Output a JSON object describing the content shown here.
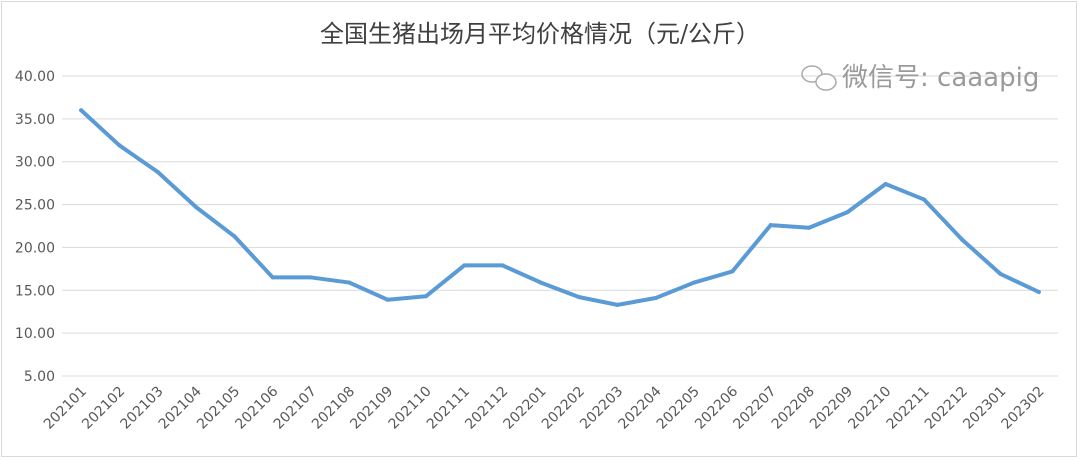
{
  "chart_data": {
    "type": "line",
    "title": "全国生猪出场月平均价格情况（元/公斤）",
    "watermark": "微信号: caaapig",
    "xlabel": "",
    "ylabel": "",
    "ylim": [
      5,
      40
    ],
    "yticks": [
      "5.00",
      "10.00",
      "15.00",
      "20.00",
      "25.00",
      "30.00",
      "35.00",
      "40.00"
    ],
    "grid": true,
    "categories": [
      "202101",
      "202102",
      "202103",
      "202104",
      "202105",
      "202106",
      "202107",
      "202108",
      "202109",
      "202110",
      "202111",
      "202112",
      "202201",
      "202202",
      "202203",
      "202204",
      "202205",
      "202206",
      "202207",
      "202208",
      "202209",
      "202210",
      "202211",
      "202212",
      "202301",
      "202302"
    ],
    "series": [
      {
        "name": "全国生猪出场月平均价格",
        "color": "#5b9bd5",
        "values": [
          36.0,
          31.9,
          28.8,
          24.7,
          21.3,
          16.5,
          16.5,
          15.9,
          13.9,
          14.3,
          17.9,
          17.9,
          15.9,
          14.2,
          13.3,
          14.1,
          15.9,
          17.2,
          22.6,
          22.3,
          24.1,
          27.4,
          25.6,
          20.9,
          16.9,
          14.8
        ]
      }
    ]
  }
}
